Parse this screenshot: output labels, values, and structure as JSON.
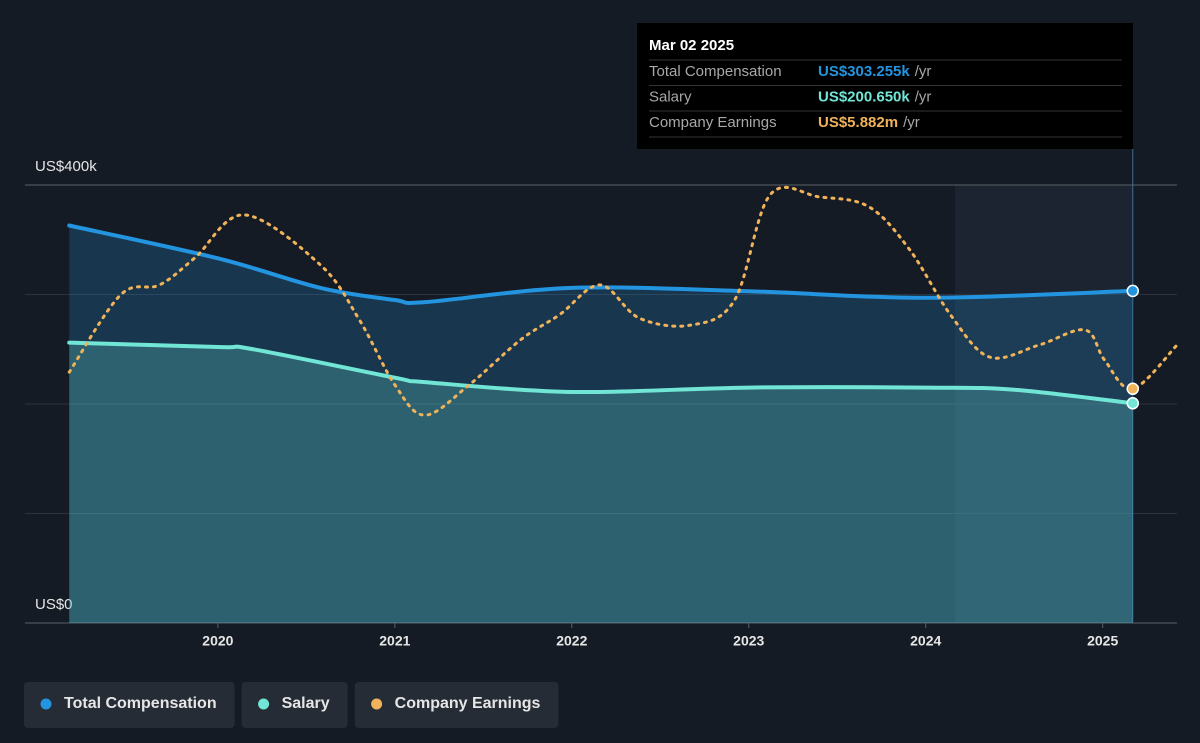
{
  "chart_data": {
    "type": "line",
    "xlim": [
      2018.91,
      2025.42
    ],
    "xticks": [
      2020,
      2021,
      2022,
      2023,
      2024,
      2025
    ],
    "ylim": [
      0,
      400000
    ],
    "yticks": [
      {
        "value": 0,
        "label": "US$0"
      },
      {
        "value": 100000,
        "label": null
      },
      {
        "value": 200000,
        "label": null
      },
      {
        "value": 300000,
        "label": null
      },
      {
        "value": 400000,
        "label": "US$400k"
      }
    ],
    "y2lim": [
      0,
      11
    ],
    "grid": true,
    "series": [
      {
        "name": "Total Compensation",
        "color": "#2394df",
        "area": true,
        "x": [
          2019.16,
          2020.0,
          2020.58,
          2021.0,
          2021.17,
          2022.0,
          2023.0,
          2024.0,
          2025.17
        ],
        "values": [
          363000,
          333000,
          306000,
          295000,
          293000,
          306000,
          303000,
          297000,
          303255
        ]
      },
      {
        "name": "Salary",
        "color": "#71e5d6",
        "area": true,
        "x": [
          2019.16,
          2020.0,
          2020.2,
          2021.0,
          2021.17,
          2022.0,
          2023.0,
          2024.0,
          2024.5,
          2025.17
        ],
        "values": [
          256000,
          252000,
          250000,
          224000,
          220000,
          211000,
          215000,
          215000,
          213000,
          200650
        ]
      },
      {
        "name": "Company Earnings",
        "color": "#f0b35a",
        "axis": "y2",
        "dashed": true,
        "x": [
          2019.16,
          2019.45,
          2019.67,
          2019.87,
          2020.15,
          2020.58,
          2020.8,
          2021.0,
          2021.17,
          2021.42,
          2021.71,
          2021.93,
          2022.16,
          2022.38,
          2022.67,
          2022.92,
          2023.12,
          2023.4,
          2023.68,
          2023.91,
          2024.14,
          2024.36,
          2024.64,
          2024.9,
          2025.01,
          2025.17,
          2025.42
        ],
        "values": [
          6.3,
          8.24,
          8.49,
          9.17,
          10.25,
          8.99,
          7.61,
          5.98,
          5.22,
          5.98,
          7.11,
          7.74,
          8.49,
          7.66,
          7.48,
          8.11,
          10.75,
          10.7,
          10.45,
          9.37,
          7.74,
          6.68,
          6.98,
          7.36,
          6.61,
          5.882,
          6.98
        ]
      }
    ],
    "tooltip": {
      "title": "Mar 02 2025",
      "rows": [
        {
          "label": "Total Compensation",
          "value": "US$303.255k",
          "unit": "/yr"
        },
        {
          "label": "Salary",
          "value": "US$200.650k",
          "unit": "/yr"
        },
        {
          "label": "Company Earnings",
          "value": "US$5.882m",
          "unit": "/yr"
        }
      ]
    }
  }
}
